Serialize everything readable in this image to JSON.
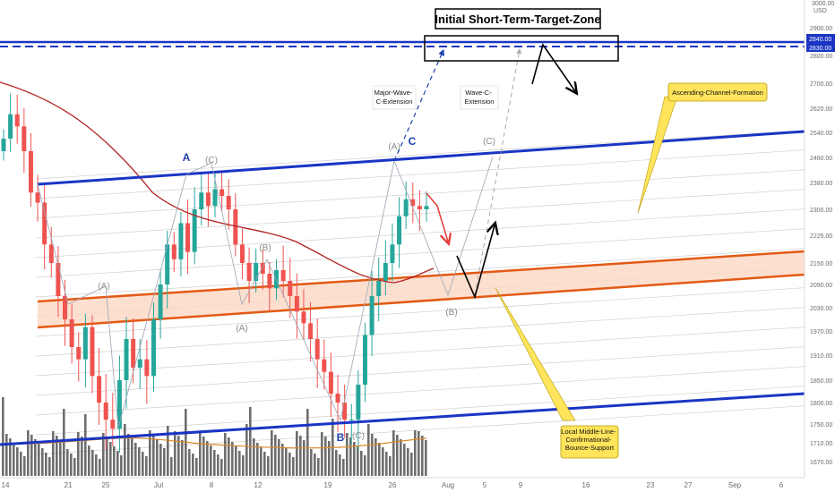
{
  "chart_data": {
    "type": "candlestick",
    "title": "Initial Short-Term-Target-Zone",
    "currency": "USD",
    "y_axis": {
      "min": 1640,
      "max": 3020,
      "ticks": [
        1670,
        1710,
        1750,
        1800,
        1850,
        1910,
        1970,
        2030,
        2090,
        2150,
        2225,
        2300,
        2380,
        2460,
        2540,
        2620,
        2700,
        2800,
        2900,
        3000
      ],
      "top_label": "3000.00",
      "highlight_labels": [
        "2840.00",
        "2830.00"
      ],
      "unit_label": "USD"
    },
    "x_axis": {
      "tick_labels": [
        "14",
        "21",
        "25",
        "Jul",
        "8",
        "12",
        "19",
        "26",
        "Aug",
        "5",
        "9",
        "16",
        "23",
        "27",
        "Sep",
        "6"
      ]
    },
    "annotations": {
      "target_zone_label": "Initial Short-Term-Target-Zone",
      "target_zone_range": [
        2830,
        2840
      ],
      "major_wave_label": "Major-Wave-C-Extension",
      "wave_c_label": "Wave-C-Extension",
      "channel_label": "Ascending-Channel-Formation",
      "support_label": "Local Middle-Line-Confirmational-Bounce-Support"
    },
    "wave_labels": {
      "A_major": "A",
      "B_major": "B",
      "C_major": "C",
      "A_paren": "(A)",
      "B_paren": "(B)",
      "C_paren": "(C)"
    },
    "colors": {
      "channel": "#1a35c4",
      "middle_band": "#e25a14",
      "band_fill": "#fcd7c4",
      "moving_average": "#b22222",
      "up_candle": "#26a69a",
      "down_candle": "#ef5350",
      "volume": "#555555",
      "note_fill": "#ffe45c"
    }
  }
}
